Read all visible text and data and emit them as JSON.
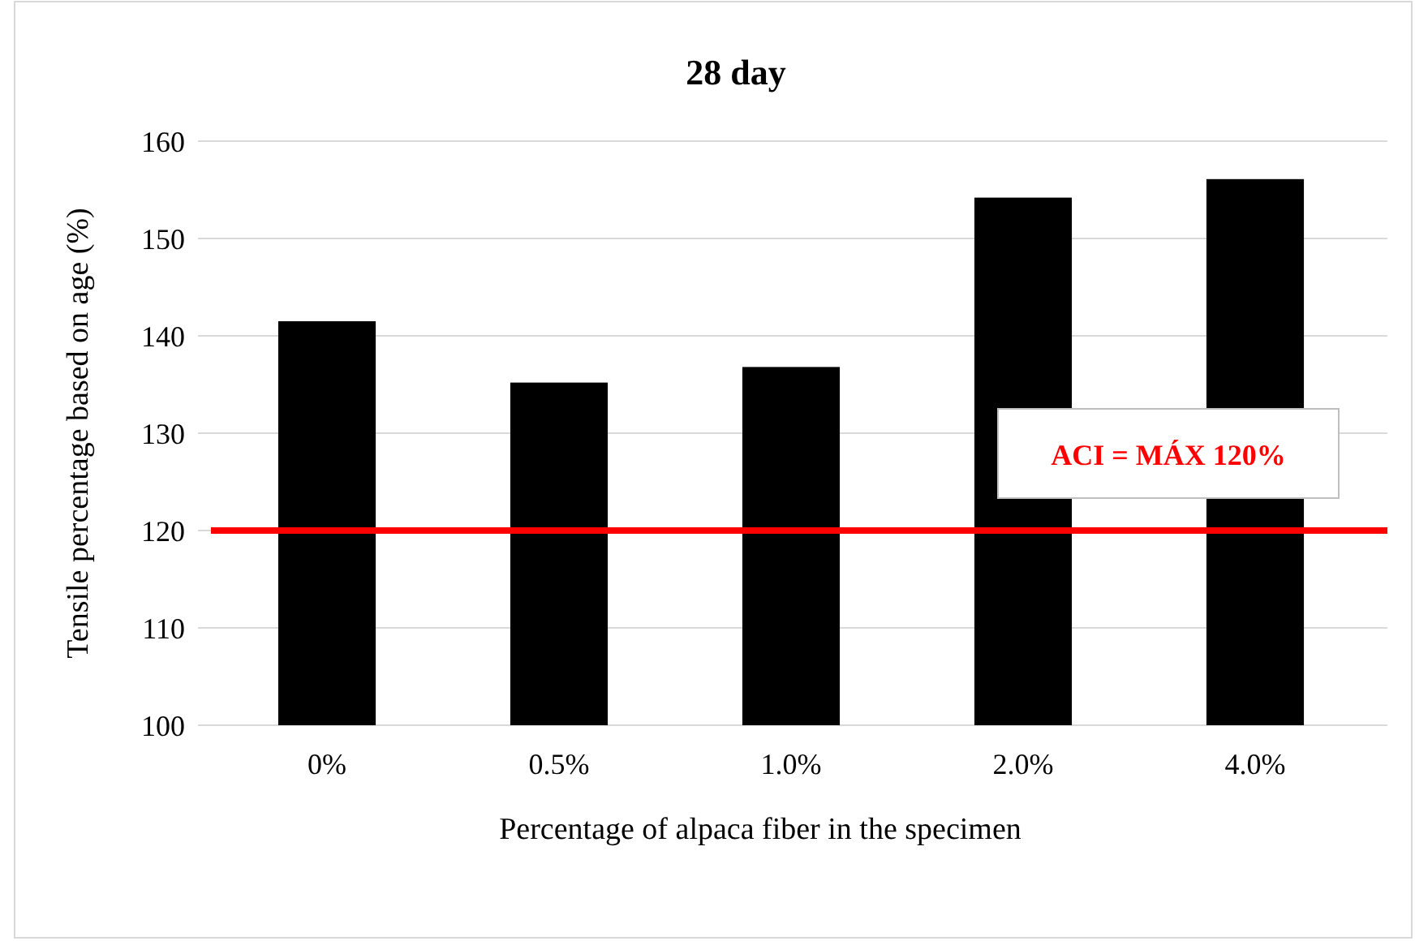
{
  "chart_data": {
    "type": "bar",
    "title": "28 day",
    "xlabel": "Percentage of alpaca fiber in the specimen",
    "ylabel": "Tensile percentage based on age (%)",
    "categories": [
      "0%",
      "0.5%",
      "1.0%",
      "2.0%",
      "4.0%"
    ],
    "values": [
      141.5,
      135.2,
      136.8,
      154.2,
      156.1
    ],
    "color": "#000000",
    "ylim": [
      100,
      160
    ],
    "yticks": [
      100,
      110,
      120,
      130,
      140,
      150,
      160
    ],
    "grid": "y",
    "ref_lines": [
      {
        "axis": "y",
        "value": 120,
        "label": "ACI = MÁX 120%",
        "color": "#ff0000"
      }
    ]
  }
}
